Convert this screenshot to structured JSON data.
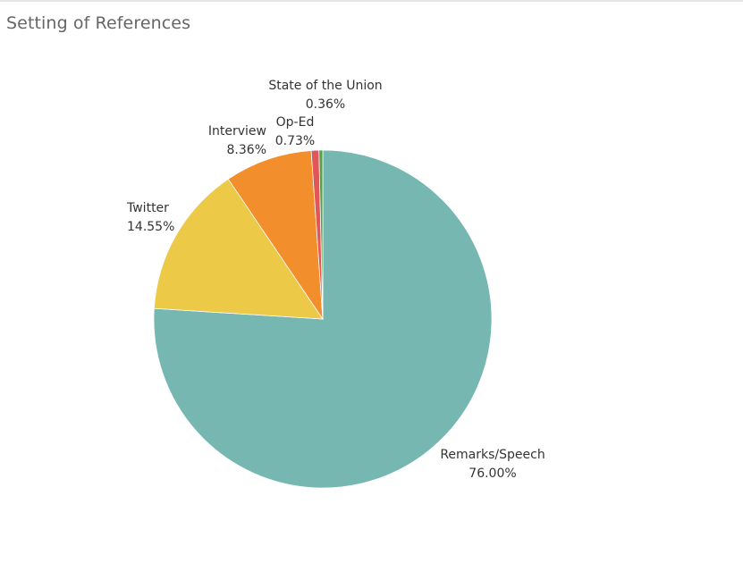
{
  "chart_data": {
    "type": "pie",
    "title": "Setting of References",
    "slices": [
      {
        "label": "Remarks/Speech",
        "value": 76.0,
        "display": "76.00%",
        "color": "#76b7b2"
      },
      {
        "label": "Twitter",
        "value": 14.55,
        "display": "14.55%",
        "color": "#edc948"
      },
      {
        "label": "Interview",
        "value": 8.36,
        "display": "8.36%",
        "color": "#f28e2b"
      },
      {
        "label": "Op-Ed",
        "value": 0.73,
        "display": "0.73%",
        "color": "#e15759"
      },
      {
        "label": "State of the Union",
        "value": 0.36,
        "display": "0.36%",
        "color": "#59a14f"
      }
    ]
  }
}
